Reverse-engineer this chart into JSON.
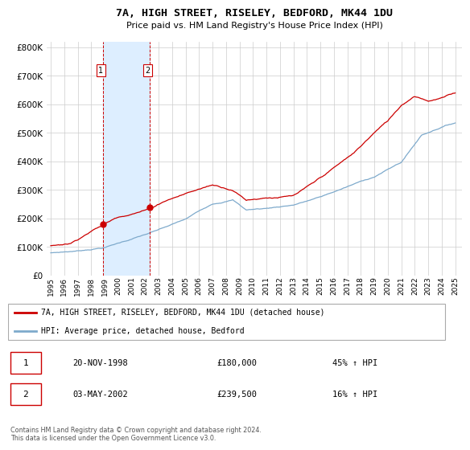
{
  "title": "7A, HIGH STREET, RISELEY, BEDFORD, MK44 1DU",
  "subtitle": "Price paid vs. HM Land Registry's House Price Index (HPI)",
  "legend_line1": "7A, HIGH STREET, RISELEY, BEDFORD, MK44 1DU (detached house)",
  "legend_line2": "HPI: Average price, detached house, Bedford",
  "footnote": "Contains HM Land Registry data © Crown copyright and database right 2024.\nThis data is licensed under the Open Government Licence v3.0.",
  "purchase1_label": "1",
  "purchase1_date": "20-NOV-1998",
  "purchase1_price": "£180,000",
  "purchase1_hpi": "45% ↑ HPI",
  "purchase1_year": 1998.88,
  "purchase1_value": 180000,
  "purchase2_label": "2",
  "purchase2_date": "03-MAY-2002",
  "purchase2_price": "£239,500",
  "purchase2_hpi": "16% ↑ HPI",
  "purchase2_year": 2002.33,
  "purchase2_value": 239500,
  "red_color": "#cc0000",
  "blue_color": "#7eaacc",
  "shade_color": "#ddeeff",
  "background_color": "#ffffff",
  "grid_color": "#cccccc",
  "ylim": [
    0,
    820000
  ],
  "yticks": [
    0,
    100000,
    200000,
    300000,
    400000,
    500000,
    600000,
    700000,
    800000
  ],
  "xlim_start": 1994.7,
  "xlim_end": 2025.5,
  "xtick_years": [
    1995,
    1996,
    1997,
    1998,
    1999,
    2000,
    2001,
    2002,
    2003,
    2004,
    2005,
    2006,
    2007,
    2008,
    2009,
    2010,
    2011,
    2012,
    2013,
    2014,
    2015,
    2016,
    2017,
    2018,
    2019,
    2020,
    2021,
    2022,
    2023,
    2024,
    2025
  ]
}
